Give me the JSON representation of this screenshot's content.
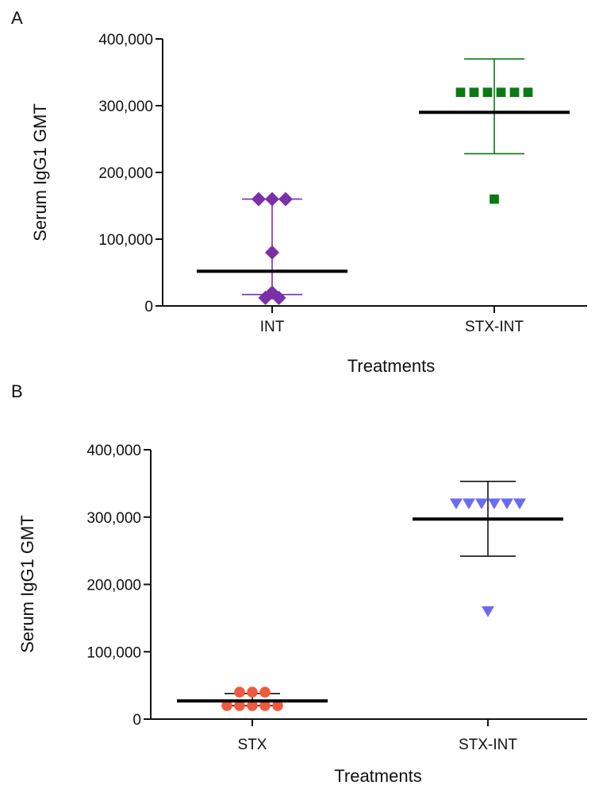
{
  "chart_data": [
    {
      "panel": "A",
      "type": "scatter",
      "title": "",
      "xlabel": "Treatments",
      "ylabel": "Serum IgG1 GMT",
      "ylim": [
        0,
        400000
      ],
      "yticks": [
        0,
        100000,
        200000,
        300000,
        400000
      ],
      "ytick_labels": [
        "0",
        "100,000",
        "200,000",
        "300,000",
        "400,000"
      ],
      "categories": [
        "INT",
        "STX-INT"
      ],
      "groups": [
        {
          "category": "INT",
          "marker": "diamond",
          "color": "#7b2fa8",
          "points": [
            160000,
            160000,
            160000,
            80000,
            20000,
            12000,
            12000
          ],
          "center": 52000,
          "error": [
            17000,
            160000
          ]
        },
        {
          "category": "STX-INT",
          "marker": "square",
          "color": "#0a7a12",
          "points": [
            320000,
            320000,
            320000,
            320000,
            320000,
            320000,
            160000
          ],
          "center": 290000,
          "error": [
            228000,
            370000
          ]
        }
      ]
    },
    {
      "panel": "B",
      "type": "scatter",
      "title": "",
      "xlabel": "Treatments",
      "ylabel": "Serum IgG1 GMT",
      "ylim": [
        0,
        400000
      ],
      "yticks": [
        0,
        100000,
        200000,
        300000,
        400000
      ],
      "ytick_labels": [
        "0",
        "100,000",
        "200,000",
        "300,000",
        "400,000"
      ],
      "categories": [
        "STX",
        "STX-INT"
      ],
      "groups": [
        {
          "category": "STX",
          "marker": "circle",
          "color": "#f05a3c",
          "points": [
            40000,
            40000,
            40000,
            20000,
            20000,
            20000,
            20000,
            20000
          ],
          "center": 27000,
          "error": [
            20000,
            38000
          ]
        },
        {
          "category": "STX-INT",
          "marker": "triangle-down",
          "color": "#6b6bf0",
          "points": [
            320000,
            320000,
            320000,
            320000,
            320000,
            320000,
            160000
          ],
          "center": 297000,
          "error": [
            242000,
            353000
          ]
        }
      ]
    }
  ]
}
